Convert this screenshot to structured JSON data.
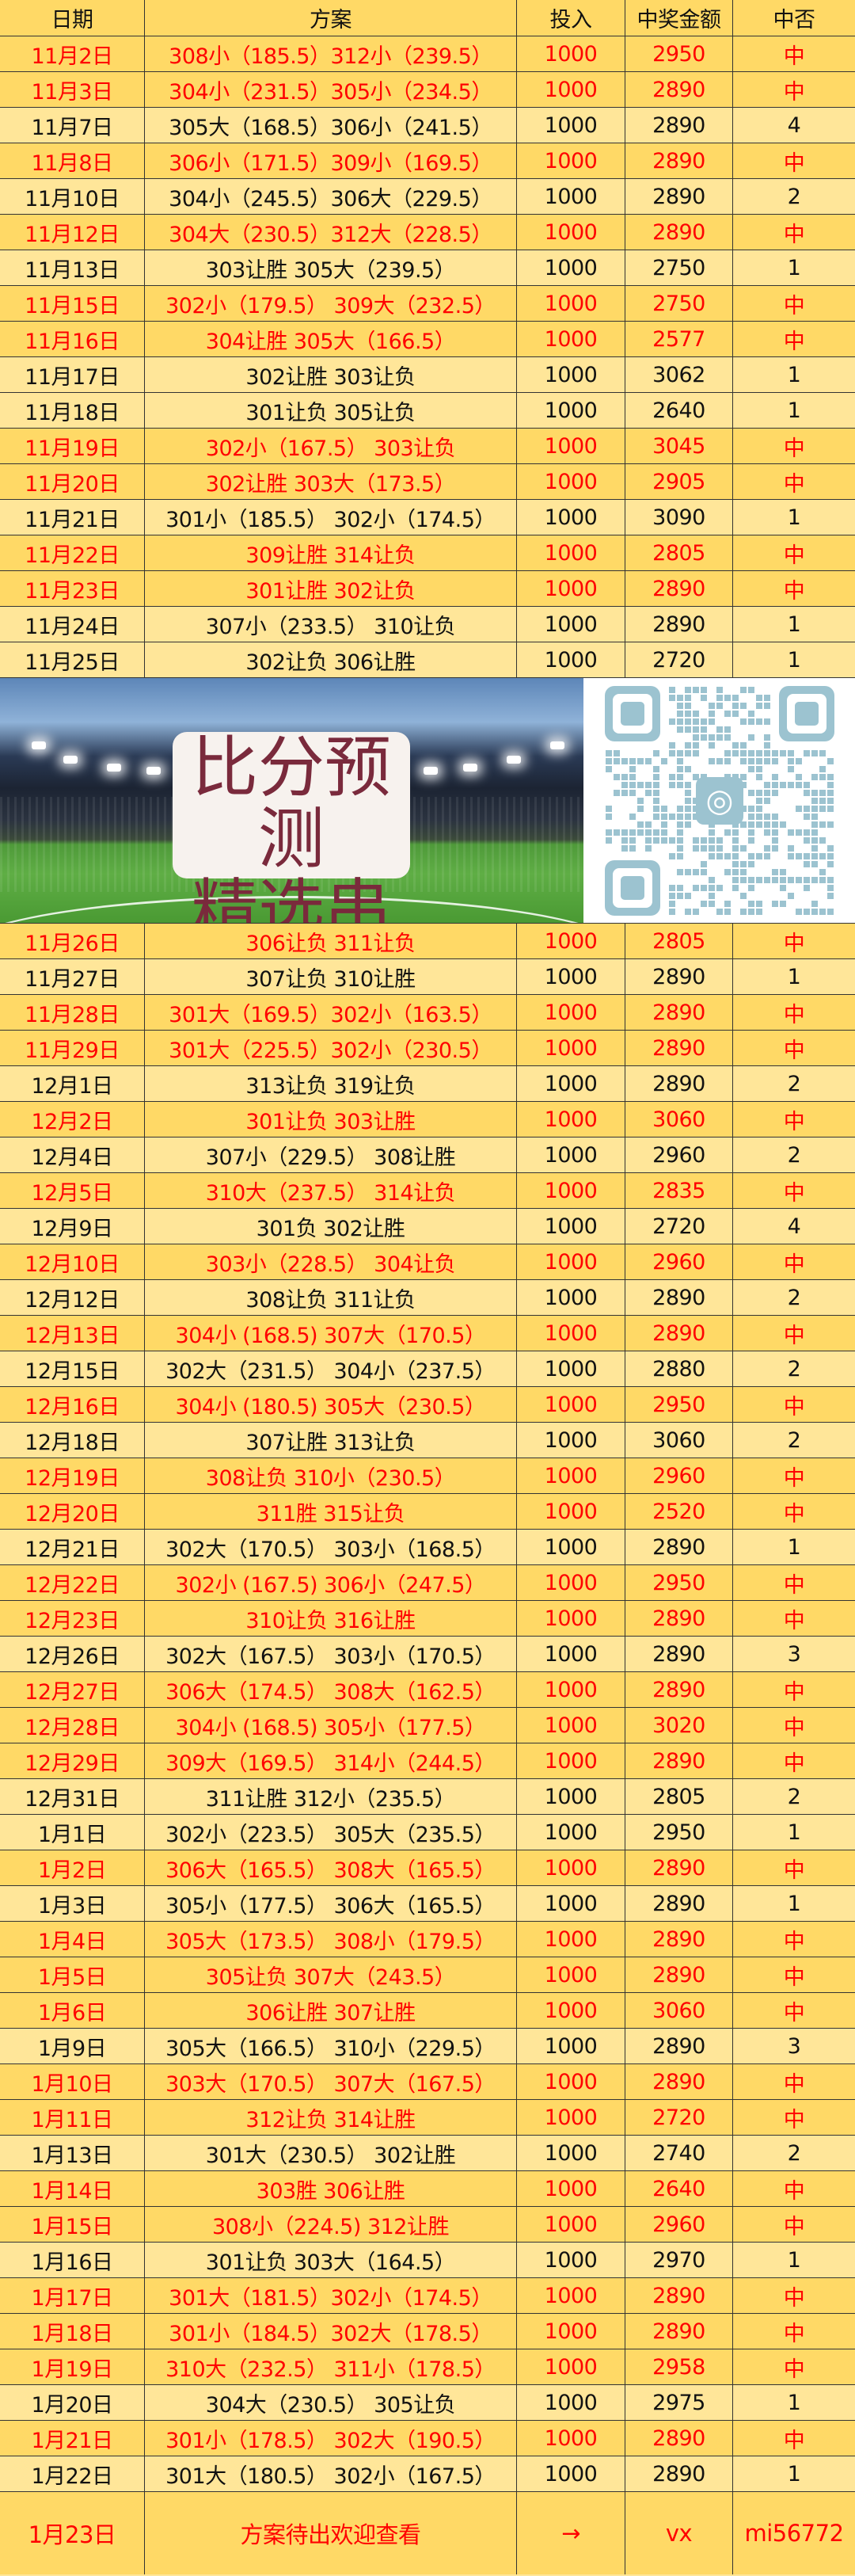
{
  "header": [
    "日期",
    "方案",
    "投入",
    "中奖金额",
    "中否"
  ],
  "rows_top": [
    [
      "11月2日",
      "308小（185.5）312小（239.5）",
      "1000",
      "2950",
      "中"
    ],
    [
      "11月3日",
      "304小（231.5）305小（234.5）",
      "1000",
      "2890",
      "中"
    ],
    [
      "11月7日",
      "305大（168.5）306小（241.5）",
      "1000",
      "2890",
      "4"
    ],
    [
      "11月8日",
      "306小（171.5）309小（169.5）",
      "1000",
      "2890",
      "中"
    ],
    [
      "11月10日",
      "304小（245.5）306大（229.5）",
      "1000",
      "2890",
      "2"
    ],
    [
      "11月12日",
      "304大（230.5）312大（228.5）",
      "1000",
      "2890",
      "中"
    ],
    [
      "11月13日",
      "303让胜  305大（239.5）",
      "1000",
      "2750",
      "1"
    ],
    [
      "11月15日",
      "302小（179.5）  309大（232.5）",
      "1000",
      "2750",
      "中"
    ],
    [
      "11月16日",
      "304让胜  305大（166.5）",
      "1000",
      "2577",
      "中"
    ],
    [
      "11月17日",
      "302让胜 303让负",
      "1000",
      "3062",
      "1"
    ],
    [
      "11月18日",
      "301让负 305让负",
      "1000",
      "2640",
      "1"
    ],
    [
      "11月19日",
      "302小（167.5）  303让负",
      "1000",
      "3045",
      "中"
    ],
    [
      "11月20日",
      "302让胜 303大（173.5）",
      "1000",
      "2905",
      "中"
    ],
    [
      "11月21日",
      "301小（185.5）  302小（174.5）",
      "1000",
      "3090",
      "1"
    ],
    [
      "11月22日",
      "309让胜  314让负",
      "1000",
      "2805",
      "中"
    ],
    [
      "11月23日",
      "301让胜 302让负",
      "1000",
      "2890",
      "中"
    ],
    [
      "11月24日",
      "307小（233.5）  310让负",
      "1000",
      "2890",
      "1"
    ],
    [
      "11月25日",
      "302让负  306让胜",
      "1000",
      "2720",
      "1"
    ]
  ],
  "banner": {
    "line1": "比分预测",
    "line2": "精选串子",
    "qr_icon": "wechat-icon",
    "text_color": "#7a2a3c"
  },
  "rows_bottom": [
    [
      "11月26日",
      "306让负  311让负",
      "1000",
      "2805",
      "中"
    ],
    [
      "11月27日",
      "307让负  310让胜",
      "1000",
      "2890",
      "1"
    ],
    [
      "11月28日",
      "301大（169.5）302小（163.5）",
      "1000",
      "2890",
      "中"
    ],
    [
      "11月29日",
      "301大（225.5）302小（230.5）",
      "1000",
      "2890",
      "中"
    ],
    [
      "12月1日",
      "313让负 319让负",
      "1000",
      "2890",
      "2"
    ],
    [
      "12月2日",
      "301让负 303让胜",
      "1000",
      "3060",
      "中"
    ],
    [
      "12月4日",
      "307小（229.5）  308让胜",
      "1000",
      "2960",
      "2"
    ],
    [
      "12月5日",
      "310大（237.5）  314让负",
      "1000",
      "2835",
      "中"
    ],
    [
      "12月9日",
      "301负 302让胜",
      "1000",
      "2720",
      "4"
    ],
    [
      "12月10日",
      "303小（228.5）  304让负",
      "1000",
      "2960",
      "中"
    ],
    [
      "12月12日",
      "308让负 311让负",
      "1000",
      "2890",
      "2"
    ],
    [
      "12月13日",
      "304小 (168.5)  307大（170.5）",
      "1000",
      "2890",
      "中"
    ],
    [
      "12月15日",
      "302大（231.5）  304小（237.5）",
      "1000",
      "2880",
      "2"
    ],
    [
      "12月16日",
      "304小 (180.5)  305大（230.5）",
      "1000",
      "2950",
      "中"
    ],
    [
      "12月18日",
      "307让胜 313让负",
      "1000",
      "3060",
      "2"
    ],
    [
      "12月19日",
      "308让负 310小（230.5）",
      "1000",
      "2960",
      "中"
    ],
    [
      "12月20日",
      "311胜 315让负",
      "1000",
      "2520",
      "中"
    ],
    [
      "12月21日",
      "302大（170.5）  303小（168.5）",
      "1000",
      "2890",
      "1"
    ],
    [
      "12月22日",
      "302小 (167.5)  306小（247.5）",
      "1000",
      "2950",
      "中"
    ],
    [
      "12月23日",
      "310让负 316让胜",
      "1000",
      "2890",
      "中"
    ],
    [
      "12月26日",
      "302大（167.5）  303小（170.5）",
      "1000",
      "2890",
      "3"
    ],
    [
      "12月27日",
      "306大（174.5）  308大（162.5）",
      "1000",
      "2890",
      "中"
    ],
    [
      "12月28日",
      "304小 (168.5)  305小（177.5）",
      "1000",
      "3020",
      "中"
    ],
    [
      "12月29日",
      "309大（169.5）  314小（244.5）",
      "1000",
      "2890",
      "中"
    ],
    [
      "12月31日",
      "311让胜 312小（235.5）",
      "1000",
      "2805",
      "2"
    ],
    [
      "1月1日",
      "302小（223.5）  305大（235.5）",
      "1000",
      "2950",
      "1"
    ],
    [
      "1月2日",
      "306大（165.5）  308大（165.5）",
      "1000",
      "2890",
      "中"
    ],
    [
      "1月3日",
      "305小（177.5）  306大（165.5）",
      "1000",
      "2890",
      "1"
    ],
    [
      "1月4日",
      "305大（173.5）  308小（179.5）",
      "1000",
      "2890",
      "中"
    ],
    [
      "1月5日",
      "305让负 307大（243.5）",
      "1000",
      "2890",
      "中"
    ],
    [
      "1月6日",
      "306让胜 307让胜",
      "1000",
      "3060",
      "中"
    ],
    [
      "1月9日",
      "305大（166.5）  310小（229.5）",
      "1000",
      "2890",
      "3"
    ],
    [
      "1月10日",
      "303大（170.5）  307大（167.5）",
      "1000",
      "2890",
      "中"
    ],
    [
      "1月11日",
      "312让负 314让胜",
      "1000",
      "2720",
      "中"
    ],
    [
      "1月13日",
      "301大（230.5）  302让胜",
      "1000",
      "2740",
      "2"
    ],
    [
      "1月14日",
      "303胜 306让胜",
      "1000",
      "2640",
      "中"
    ],
    [
      "1月15日",
      "308小（224.5) 312让胜",
      "1000",
      "2960",
      "中"
    ],
    [
      "1月16日",
      "301让负 303大（164.5）",
      "1000",
      "2970",
      "1"
    ],
    [
      "1月17日",
      "301大（181.5）302小（174.5）",
      "1000",
      "2890",
      "中"
    ],
    [
      "1月18日",
      "301小（184.5）302大（178.5）",
      "1000",
      "2890",
      "中"
    ],
    [
      "1月19日",
      "310大（232.5）  311小（178.5）",
      "1000",
      "2958",
      "中"
    ],
    [
      "1月20日",
      "304大（230.5）  305让负",
      "1000",
      "2975",
      "1"
    ],
    [
      "1月21日",
      "301小（178.5）  302大（190.5）",
      "1000",
      "2890",
      "中"
    ],
    [
      "1月22日",
      "301大（180.5）  302小（167.5）",
      "1000",
      "2890",
      "1"
    ]
  ],
  "final_row": [
    "1月23日",
    "方案待出欢迎查看",
    "→",
    "vx",
    "mi56772"
  ],
  "colors": {
    "hit_bg": "#FFD966",
    "miss_bg": "#FFE699",
    "hit_text": "#FF0000",
    "miss_text": "#111111"
  }
}
